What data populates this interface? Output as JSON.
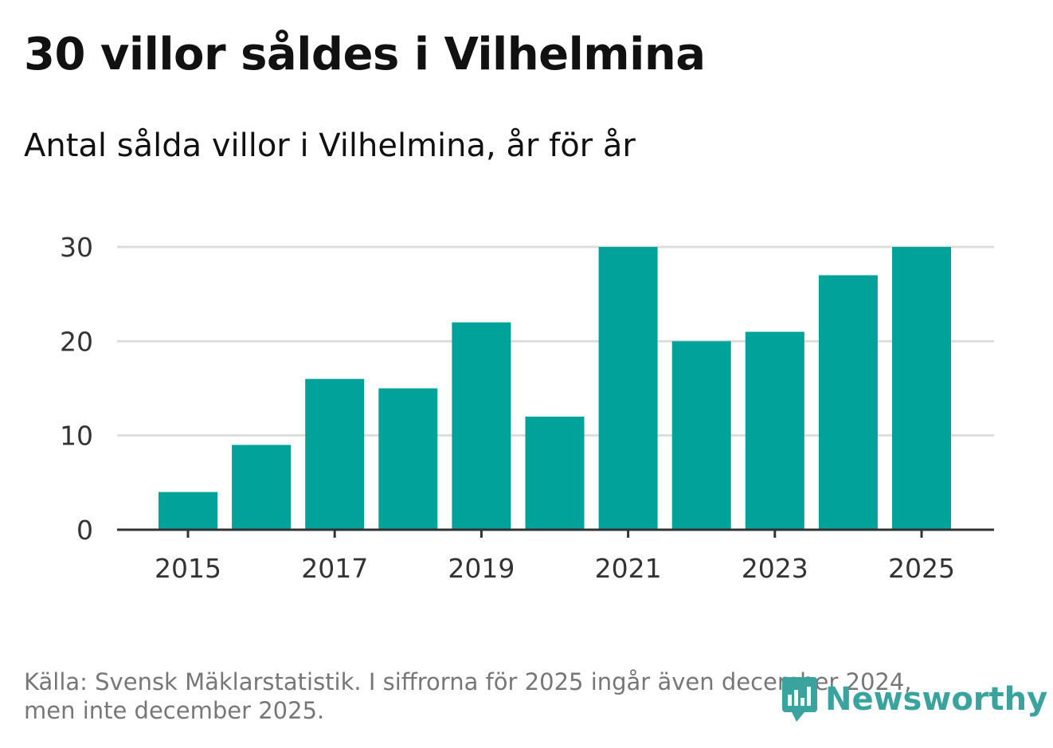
{
  "title": "30 villor såldes i Vilhelmina",
  "subtitle": "Antal sålda villor i Vilhelmina, år för år",
  "source_line1": "Källa: Svensk Mäklarstatistik. I siffrorna för 2025 ingår även december 2024,",
  "source_line2": "men inte december 2025.",
  "logo_text": "Newsworthy",
  "logo_icon": "newsworthy-logo-icon",
  "colors": {
    "bar": "#00a29a",
    "grid": "#dddddd",
    "axis": "#333333",
    "logo": "#3aa39e"
  },
  "chart_data": {
    "type": "bar",
    "title": "30 villor såldes i Vilhelmina",
    "subtitle": "Antal sålda villor i Vilhelmina, år för år",
    "xlabel": "",
    "ylabel": "",
    "categories": [
      2015,
      2016,
      2017,
      2018,
      2019,
      2020,
      2021,
      2022,
      2023,
      2024,
      2025
    ],
    "values": [
      4,
      9,
      16,
      15,
      22,
      12,
      30,
      20,
      21,
      27,
      30
    ],
    "x_tick_labels": [
      "2015",
      "2017",
      "2019",
      "2021",
      "2023",
      "2025"
    ],
    "y_ticks": [
      0,
      10,
      20,
      30
    ],
    "ylim": [
      0,
      30
    ],
    "grid": true
  }
}
